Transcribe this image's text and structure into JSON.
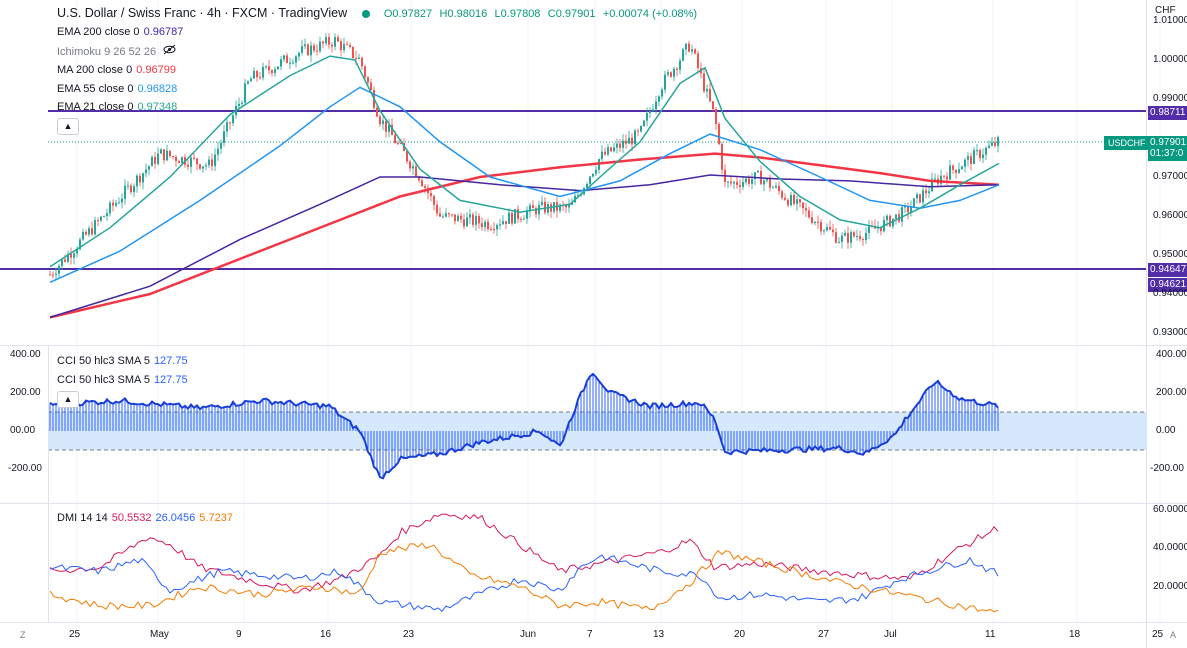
{
  "header": {
    "title": "U.S. Dollar / Swiss Franc · 4h · FXCM · TradingView",
    "open": "O0.97827",
    "high": "H0.98016",
    "low": "L0.97808",
    "close": "C0.97901",
    "change": "+0.00074 (+0.08%)",
    "currency": "CHF"
  },
  "indicators": [
    {
      "label": "EMA 200 close 0",
      "value": "0.96787",
      "color": "#4527a0"
    },
    {
      "label": "Ichimoku 9 26 52 26",
      "value": "",
      "color": "#787b86"
    },
    {
      "label": "MA 200 close 0",
      "value": "0.96799",
      "color": "#f23645"
    },
    {
      "label": "EMA 55 close 0",
      "value": "0.96828",
      "color": "#2196f3"
    },
    {
      "label": "EMA 21 close 0",
      "value": "0.97348",
      "color": "#26a69a"
    }
  ],
  "price_axis": [
    "1.01000",
    "1.00000",
    "0.99000",
    "0.97000",
    "0.96000",
    "0.95000",
    "0.94000",
    "0.93000"
  ],
  "price_tags": [
    {
      "text": "0.98711",
      "color": "#512da8",
      "y": 113
    },
    {
      "text": "0.97901",
      "color": "#089981",
      "y": 143
    },
    {
      "text": "01:37:0",
      "color": "#089981",
      "y": 154
    },
    {
      "text": "0.94647",
      "color": "#512da8",
      "y": 270
    },
    {
      "text": "0.94621",
      "color": "#512da8",
      "y": 285
    }
  ],
  "symbol_tag": "USDCHF",
  "cci": {
    "legend1": "CCI 50 hlc3 SMA 5",
    "legend2": "CCI 50 hlc3 SMA 5",
    "value": "127.75",
    "left_axis": [
      "400.00",
      "200.00",
      "00.00",
      "-200.00"
    ],
    "right_axis": [
      "400.00",
      "200.00",
      "0.00",
      "-200.00"
    ]
  },
  "dmi": {
    "label": "DMI 14 14",
    "plus": "50.5532",
    "minus": "26.0456",
    "adx": "5.7237",
    "axis": [
      "60.0000",
      "40.0000",
      "20.0000"
    ]
  },
  "time_axis": [
    "25",
    "May",
    "9",
    "16",
    "23",
    "Jun",
    "7",
    "13",
    "20",
    "27",
    "Jul",
    "11",
    "18",
    "25"
  ],
  "corner_left": "Z",
  "corner_right": "A",
  "colors": {
    "up": "#26a69a",
    "down": "#ef5350",
    "bg": "#ffffff"
  }
}
